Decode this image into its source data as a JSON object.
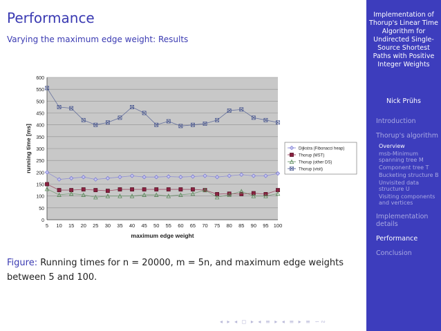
{
  "frame": {
    "title": "Performance",
    "subtitle": "Varying the maximum edge weight: Results"
  },
  "caption": {
    "label": "Figure:",
    "text": "Running times for n = 20000, m = 5n, and maximum edge weights between 5 and 100."
  },
  "nav_symbols": "◂ ▸ ◂ ◻ ▸ ◂ ≡ ▸ ◂ ≡ ▸ ≡ ∽∾",
  "sidebar": {
    "title": "Implementation of Thorup's Linear Time Algorithm for Undirected Single-Source Shortest Paths with Positive Integer Weights",
    "author": "Nick Prühs",
    "sections": [
      {
        "label": "Introduction",
        "current": false,
        "subs": []
      },
      {
        "label": "Thorup's algorithm",
        "current": false,
        "subs": [
          {
            "label": "Overview",
            "current": true
          },
          {
            "label": "msb-Minimum spanning tree M",
            "current": false
          },
          {
            "label": "Component tree T",
            "current": false
          },
          {
            "label": "Bucketing structure B",
            "current": false
          },
          {
            "label": "Unvisited data structure U",
            "current": false
          },
          {
            "label": "Visiting components and vertices",
            "current": false
          }
        ]
      },
      {
        "label": "Implementation details",
        "current": false,
        "subs": []
      },
      {
        "label": "Performance",
        "current": true,
        "subs": []
      },
      {
        "label": "Conclusion",
        "current": false,
        "subs": []
      }
    ]
  },
  "chart_data": {
    "type": "line",
    "xlabel": "maximum edge weight",
    "ylabel": "running time [ms]",
    "ylim": [
      0,
      600
    ],
    "yticks": [
      0,
      50,
      100,
      150,
      200,
      250,
      300,
      350,
      400,
      450,
      500,
      550,
      600
    ],
    "grid": true,
    "legend": "right",
    "categories": [
      5,
      10,
      15,
      20,
      25,
      30,
      35,
      40,
      45,
      50,
      55,
      60,
      65,
      70,
      75,
      80,
      85,
      90,
      95,
      100
    ],
    "series": [
      {
        "name": "Dijkstra (Fibonacci heap)",
        "marker": "diamond",
        "color": "#7a7ad6",
        "values": [
          200,
          170,
          175,
          180,
          170,
          175,
          180,
          185,
          180,
          180,
          182,
          180,
          182,
          185,
          180,
          185,
          190,
          185,
          185,
          195
        ]
      },
      {
        "name": "Thorup (MST)",
        "marker": "square",
        "color": "#8b2040",
        "values": [
          150,
          125,
          125,
          128,
          125,
          122,
          128,
          128,
          128,
          128,
          128,
          128,
          128,
          125,
          108,
          110,
          108,
          112,
          108,
          125
        ]
      },
      {
        "name": "Thorup (other DS)",
        "marker": "triangle",
        "color": "#5a8a5a",
        "values": [
          130,
          105,
          110,
          105,
          95,
          100,
          100,
          100,
          105,
          105,
          100,
          105,
          110,
          125,
          95,
          105,
          120,
          100,
          100,
          110
        ]
      },
      {
        "name": "Thorup (visit)",
        "marker": "x",
        "color": "#3a4a8a",
        "values": [
          555,
          475,
          470,
          420,
          400,
          410,
          430,
          475,
          450,
          400,
          415,
          395,
          400,
          405,
          420,
          460,
          465,
          430,
          420,
          410
        ]
      }
    ]
  }
}
